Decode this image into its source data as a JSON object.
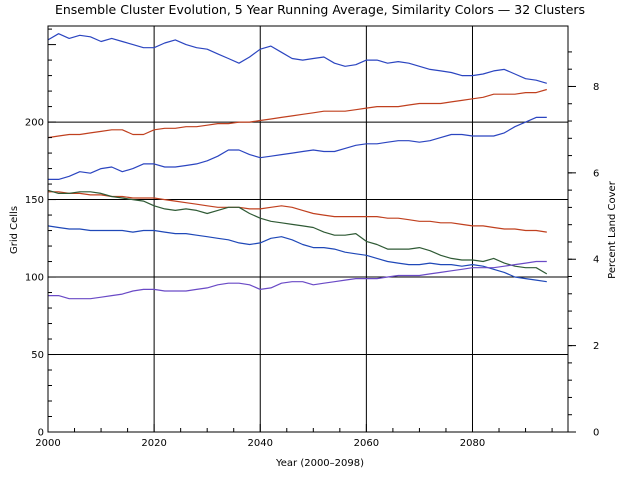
{
  "chart_data": {
    "type": "line",
    "title": "Ensemble Cluster Evolution, 5 Year Running Average, Similarity Colors — 32 Clusters",
    "xlabel": "Year (2000–2098)",
    "ylabel": "Grid Cells",
    "y2label": "Percent Land Cover",
    "xlim": [
      2000,
      2098
    ],
    "ylim": [
      0,
      262
    ],
    "y2lim": [
      0,
      9.4
    ],
    "xticks": [
      "2000",
      "2020",
      "2040",
      "2060",
      "2080"
    ],
    "yticks": [
      "0",
      "50",
      "100",
      "150",
      "200"
    ],
    "y2ticks": [
      "0",
      "2",
      "4",
      "6",
      "8"
    ],
    "grid": true,
    "series": [
      {
        "color": "#2b45c0",
        "x": [
          2000,
          2002,
          2004,
          2006,
          2008,
          2010,
          2012,
          2014,
          2016,
          2018,
          2020,
          2022,
          2024,
          2026,
          2028,
          2030,
          2032,
          2034,
          2036,
          2038,
          2040,
          2042,
          2044,
          2046,
          2048,
          2050,
          2052,
          2054,
          2056,
          2058,
          2060,
          2062,
          2064,
          2066,
          2068,
          2070,
          2072,
          2074,
          2076,
          2078,
          2080,
          2082,
          2084,
          2086,
          2088,
          2090,
          2092,
          2094
        ],
        "values": [
          253,
          257,
          254,
          256,
          255,
          252,
          254,
          252,
          250,
          248,
          248,
          251,
          253,
          250,
          248,
          247,
          244,
          241,
          238,
          242,
          247,
          249,
          245,
          241,
          240,
          241,
          242,
          238,
          236,
          237,
          240,
          240,
          238,
          239,
          238,
          236,
          234,
          233,
          232,
          230,
          230,
          231,
          233,
          234,
          231,
          228,
          227,
          225
        ]
      },
      {
        "color": "#c0401f",
        "x": [
          2000,
          2002,
          2004,
          2006,
          2008,
          2010,
          2012,
          2014,
          2016,
          2018,
          2020,
          2022,
          2024,
          2026,
          2028,
          2030,
          2032,
          2034,
          2036,
          2038,
          2040,
          2042,
          2044,
          2046,
          2048,
          2050,
          2052,
          2054,
          2056,
          2058,
          2060,
          2062,
          2064,
          2066,
          2068,
          2070,
          2072,
          2074,
          2076,
          2078,
          2080,
          2082,
          2084,
          2086,
          2088,
          2090,
          2092,
          2094
        ],
        "values": [
          190,
          191,
          192,
          192,
          193,
          194,
          195,
          195,
          192,
          192,
          195,
          196,
          196,
          197,
          197,
          198,
          199,
          199,
          200,
          200,
          201,
          202,
          203,
          204,
          205,
          206,
          207,
          207,
          207,
          208,
          209,
          210,
          210,
          210,
          211,
          212,
          212,
          212,
          213,
          214,
          215,
          216,
          218,
          218,
          218,
          219,
          219,
          221
        ]
      },
      {
        "color": "#2b45c0",
        "x": [
          2000,
          2002,
          2004,
          2006,
          2008,
          2010,
          2012,
          2014,
          2016,
          2018,
          2020,
          2022,
          2024,
          2026,
          2028,
          2030,
          2032,
          2034,
          2036,
          2038,
          2040,
          2042,
          2044,
          2046,
          2048,
          2050,
          2052,
          2054,
          2056,
          2058,
          2060,
          2062,
          2064,
          2066,
          2068,
          2070,
          2072,
          2074,
          2076,
          2078,
          2080,
          2082,
          2084,
          2086,
          2088,
          2090,
          2092,
          2094
        ],
        "values": [
          163,
          163,
          165,
          168,
          167,
          170,
          171,
          168,
          170,
          173,
          173,
          171,
          171,
          172,
          173,
          175,
          178,
          182,
          182,
          179,
          177,
          178,
          179,
          180,
          181,
          182,
          181,
          181,
          183,
          185,
          186,
          186,
          187,
          188,
          188,
          187,
          188,
          190,
          192,
          192,
          191,
          191,
          191,
          193,
          197,
          200,
          203,
          203
        ]
      },
      {
        "color": "#c0401f",
        "x": [
          2000,
          2002,
          2004,
          2006,
          2008,
          2010,
          2012,
          2014,
          2016,
          2018,
          2020,
          2022,
          2024,
          2026,
          2028,
          2030,
          2032,
          2034,
          2036,
          2038,
          2040,
          2042,
          2044,
          2046,
          2048,
          2050,
          2052,
          2054,
          2056,
          2058,
          2060,
          2062,
          2064,
          2066,
          2068,
          2070,
          2072,
          2074,
          2076,
          2078,
          2080,
          2082,
          2084,
          2086,
          2088,
          2090,
          2092,
          2094
        ],
        "values": [
          155,
          155,
          154,
          154,
          153,
          153,
          152,
          152,
          151,
          151,
          151,
          150,
          149,
          148,
          147,
          146,
          145,
          145,
          145,
          144,
          144,
          145,
          146,
          145,
          143,
          141,
          140,
          139,
          139,
          139,
          139,
          139,
          138,
          138,
          137,
          136,
          136,
          135,
          135,
          134,
          133,
          133,
          132,
          131,
          131,
          130,
          130,
          129
        ]
      },
      {
        "color": "#2f5a35",
        "x": [
          2000,
          2002,
          2004,
          2006,
          2008,
          2010,
          2012,
          2014,
          2016,
          2018,
          2020,
          2022,
          2024,
          2026,
          2028,
          2030,
          2032,
          2034,
          2036,
          2038,
          2040,
          2042,
          2044,
          2046,
          2048,
          2050,
          2052,
          2054,
          2056,
          2058,
          2060,
          2062,
          2064,
          2066,
          2068,
          2070,
          2072,
          2074,
          2076,
          2078,
          2080,
          2082,
          2084,
          2086,
          2088,
          2090,
          2092,
          2094
        ],
        "values": [
          156,
          154,
          154,
          155,
          155,
          154,
          152,
          151,
          150,
          149,
          146,
          144,
          143,
          144,
          143,
          141,
          143,
          145,
          145,
          141,
          138,
          136,
          135,
          134,
          133,
          132,
          129,
          127,
          127,
          128,
          123,
          121,
          118,
          118,
          118,
          119,
          117,
          114,
          112,
          111,
          111,
          110,
          112,
          109,
          107,
          106,
          106,
          102
        ]
      },
      {
        "color": "#1f48b8",
        "x": [
          2000,
          2002,
          2004,
          2006,
          2008,
          2010,
          2012,
          2014,
          2016,
          2018,
          2020,
          2022,
          2024,
          2026,
          2028,
          2030,
          2032,
          2034,
          2036,
          2038,
          2040,
          2042,
          2044,
          2046,
          2048,
          2050,
          2052,
          2054,
          2056,
          2058,
          2060,
          2062,
          2064,
          2066,
          2068,
          2070,
          2072,
          2074,
          2076,
          2078,
          2080,
          2082,
          2084,
          2086,
          2088,
          2090,
          2092,
          2094
        ],
        "values": [
          133,
          132,
          131,
          131,
          130,
          130,
          130,
          130,
          129,
          130,
          130,
          129,
          128,
          128,
          127,
          126,
          125,
          124,
          122,
          121,
          122,
          125,
          126,
          124,
          121,
          119,
          119,
          118,
          116,
          115,
          114,
          112,
          110,
          109,
          108,
          108,
          109,
          108,
          108,
          107,
          108,
          107,
          105,
          103,
          100,
          99,
          98,
          97
        ]
      },
      {
        "color": "#6a4ac6",
        "x": [
          2000,
          2002,
          2004,
          2006,
          2008,
          2010,
          2012,
          2014,
          2016,
          2018,
          2020,
          2022,
          2024,
          2026,
          2028,
          2030,
          2032,
          2034,
          2036,
          2038,
          2040,
          2042,
          2044,
          2046,
          2048,
          2050,
          2052,
          2054,
          2056,
          2058,
          2060,
          2062,
          2064,
          2066,
          2068,
          2070,
          2072,
          2074,
          2076,
          2078,
          2080,
          2082,
          2084,
          2086,
          2088,
          2090,
          2092,
          2094
        ],
        "values": [
          88,
          88,
          86,
          86,
          86,
          87,
          88,
          89,
          91,
          92,
          92,
          91,
          91,
          91,
          92,
          93,
          95,
          96,
          96,
          95,
          92,
          93,
          96,
          97,
          97,
          95,
          96,
          97,
          98,
          99,
          99,
          99,
          100,
          101,
          101,
          101,
          102,
          103,
          104,
          105,
          106,
          106,
          106,
          107,
          108,
          109,
          110,
          110
        ]
      }
    ]
  }
}
